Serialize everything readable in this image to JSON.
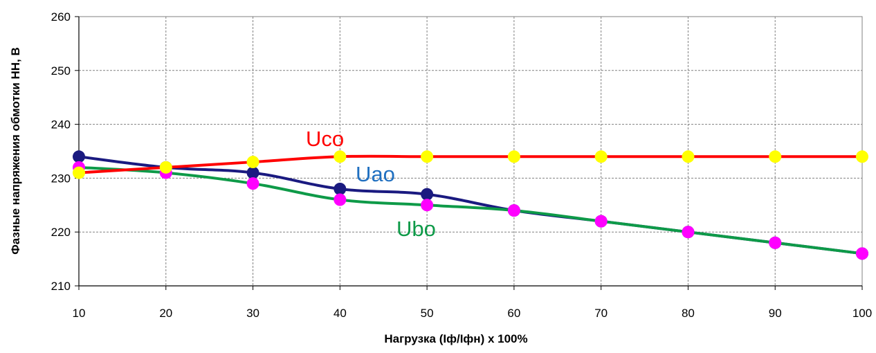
{
  "chart_data": {
    "type": "line",
    "title": "",
    "xlabel": "Нагрузка (Iф/Iфн) х 100%",
    "ylabel": "Фазные напряжения обмотки НН, В",
    "x": [
      10,
      20,
      30,
      40,
      50,
      60,
      70,
      80,
      90,
      100
    ],
    "xlim": [
      10,
      100
    ],
    "ylim": [
      210,
      260
    ],
    "x_ticks": [
      "10",
      "20",
      "30",
      "40",
      "50",
      "60",
      "70",
      "80",
      "90",
      "100"
    ],
    "y_ticks": [
      "210",
      "220",
      "230",
      "240",
      "250",
      "260"
    ],
    "grid": true,
    "legend": "none",
    "series": [
      {
        "name": "Uco",
        "values": [
          231,
          232,
          233,
          234,
          234,
          234,
          234,
          234,
          234,
          234
        ],
        "line_color": "#ff0000",
        "marker_color": "#ffff00"
      },
      {
        "name": "Uao",
        "values": [
          234,
          232,
          231,
          228,
          227,
          224,
          222,
          220,
          218,
          216
        ],
        "line_color": "#1a1a80",
        "marker_color": "#1a1a80"
      },
      {
        "name": "Ubo",
        "values": [
          232,
          231,
          229,
          226,
          225,
          224,
          222,
          220,
          218,
          216
        ],
        "line_color": "#0e9a48",
        "marker_color": "#ff00ff"
      }
    ],
    "annotations": [
      {
        "text": "Uco",
        "series": "Uco",
        "color": "#ff0000"
      },
      {
        "text": "Uao",
        "series": "Uao",
        "color": "#1f6fc0"
      },
      {
        "text": "Ubo",
        "series": "Ubo",
        "color": "#0e9a48"
      }
    ]
  }
}
